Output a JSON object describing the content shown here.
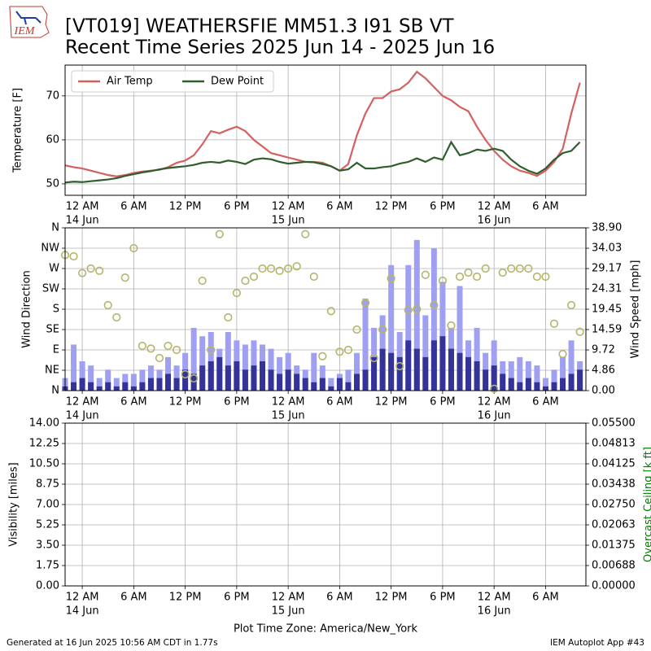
{
  "header": {
    "logo": "IEM",
    "title": [
      "[VT019] WEATHERSFIE MM51.3 I91 SB  VT",
      "Recent Time Series 2025 Jun 14 - 2025 Jun 16"
    ]
  },
  "footer": {
    "generated": "Generated at 16 Jun 2025 10:56 AM CDT in 1.77s",
    "app": "IEM Autoplot App #43"
  },
  "chart_data": [
    {
      "type": "line",
      "ylabel": "Temperature [F]",
      "xlim": [
        -2,
        58.7
      ],
      "ylim": [
        47.4,
        77
      ],
      "yticks": [
        50,
        60,
        70
      ],
      "xticks": [
        {
          "value": 0,
          "label": "12 AM",
          "sublabel": "14 Jun"
        },
        {
          "value": 6,
          "label": "6 AM"
        },
        {
          "value": 12,
          "label": "12 PM"
        },
        {
          "value": 18,
          "label": "6 PM"
        },
        {
          "value": 24,
          "label": "12 AM",
          "sublabel": "15 Jun"
        },
        {
          "value": 30,
          "label": "6 AM"
        },
        {
          "value": 36,
          "label": "12 PM"
        },
        {
          "value": 42,
          "label": "6 PM"
        },
        {
          "value": 48,
          "label": "12 AM",
          "sublabel": "16 Jun"
        },
        {
          "value": 54,
          "label": "6 AM"
        }
      ],
      "grid": true,
      "legend": "upper left",
      "x": [
        -2,
        -1,
        0,
        1,
        2,
        3,
        4,
        5,
        6,
        7,
        8,
        9,
        10,
        11,
        12,
        13,
        14,
        15,
        16,
        17,
        18,
        19,
        20,
        21,
        22,
        23,
        24,
        25,
        26,
        27,
        28,
        29,
        30,
        31,
        32,
        33,
        34,
        35,
        36,
        37,
        38,
        39,
        40,
        41,
        42,
        43,
        44,
        45,
        46,
        47,
        48,
        49,
        50,
        51,
        52,
        53,
        54,
        55,
        56,
        57,
        58
      ],
      "series": [
        {
          "name": "Air Temp",
          "color": "#d65f5f",
          "values": [
            54.2,
            53.8,
            53.5,
            53,
            52.5,
            52,
            51.7,
            52,
            52.5,
            52.8,
            53,
            53.2,
            53.8,
            54.8,
            55.3,
            56.5,
            59,
            62,
            61.5,
            62.3,
            63,
            62,
            60,
            58.5,
            57,
            56.5,
            56,
            55.5,
            55,
            55,
            54.8,
            54,
            53,
            54.5,
            61,
            66,
            69.5,
            69.5,
            71,
            71.5,
            73,
            75.5,
            74,
            72,
            70,
            69,
            67.5,
            66.5,
            63,
            60,
            57.5,
            55.5,
            54,
            53,
            52.5,
            51.8,
            53,
            55,
            58,
            66,
            73
          ]
        },
        {
          "name": "Dew Point",
          "color": "#2e5e2e",
          "values": [
            50.3,
            50.5,
            50.4,
            50.6,
            50.8,
            51,
            51.3,
            51.8,
            52.2,
            52.6,
            52.9,
            53.3,
            53.6,
            53.8,
            54,
            54.3,
            54.8,
            55,
            54.8,
            55.3,
            55,
            54.5,
            55.5,
            55.8,
            55.6,
            55,
            54.6,
            54.8,
            55,
            54.9,
            54.5,
            54,
            53,
            53.3,
            54.8,
            53.5,
            53.5,
            53.8,
            54,
            54.6,
            55,
            55.8,
            55,
            56,
            55.5,
            59.5,
            56.5,
            57,
            57.8,
            57.5,
            58,
            57.5,
            55.5,
            54,
            53,
            52.3,
            53.5,
            55.5,
            57,
            57.5,
            59.5
          ]
        }
      ]
    },
    {
      "type": "bar",
      "ylabel": "Wind Direction",
      "y2label": "Wind Speed [mph]",
      "xlim": [
        -2,
        58.7
      ],
      "ylim": [
        0,
        360
      ],
      "yticks": [
        {
          "value": 0,
          "label": "N"
        },
        {
          "value": 45,
          "label": "NE"
        },
        {
          "value": 90,
          "label": "E"
        },
        {
          "value": 135,
          "label": "SE"
        },
        {
          "value": 180,
          "label": "S"
        },
        {
          "value": 225,
          "label": "SW"
        },
        {
          "value": 270,
          "label": "W"
        },
        {
          "value": 315,
          "label": "NW"
        },
        {
          "value": 360,
          "label": "N"
        }
      ],
      "y2lim": [
        0,
        38.9
      ],
      "y2ticks": [
        {
          "value": 0,
          "label": "0.00"
        },
        4.86,
        9.72,
        14.59,
        19.45,
        24.31,
        29.17,
        34.03,
        {
          "value": 38.9,
          "label": "38.90"
        }
      ],
      "xticks": [
        {
          "value": 0,
          "label": "12 AM",
          "sublabel": "14 Jun"
        },
        {
          "value": 6,
          "label": "6 AM"
        },
        {
          "value": 12,
          "label": "12 PM"
        },
        {
          "value": 18,
          "label": "6 PM"
        },
        {
          "value": 24,
          "label": "12 AM",
          "sublabel": "15 Jun"
        },
        {
          "value": 30,
          "label": "6 AM"
        },
        {
          "value": 36,
          "label": "12 PM"
        },
        {
          "value": 42,
          "label": "6 PM"
        },
        {
          "value": 48,
          "label": "12 AM",
          "sublabel": "16 Jun"
        },
        {
          "value": 54,
          "label": "6 AM"
        }
      ],
      "grid": true,
      "x": [
        -2,
        -1,
        0,
        1,
        2,
        3,
        4,
        5,
        6,
        7,
        8,
        9,
        10,
        11,
        12,
        13,
        14,
        15,
        16,
        17,
        18,
        19,
        20,
        21,
        22,
        23,
        24,
        25,
        26,
        27,
        28,
        29,
        30,
        31,
        32,
        33,
        34,
        35,
        36,
        37,
        38,
        39,
        40,
        41,
        42,
        43,
        44,
        45,
        46,
        47,
        48,
        49,
        50,
        51,
        52,
        53,
        54,
        55,
        56,
        57,
        58
      ],
      "series": [
        {
          "type": "bar",
          "axis": "y2",
          "color": "#a0a0f2",
          "values": [
            3,
            11,
            7,
            6,
            3,
            5,
            3,
            4,
            4,
            5,
            6,
            5,
            8,
            6,
            9,
            15,
            13,
            14,
            10,
            14,
            12,
            11,
            12,
            11,
            10,
            8,
            9,
            6,
            5,
            9,
            6,
            3,
            4,
            5,
            9,
            22,
            15,
            18,
            30,
            14,
            30,
            36,
            18,
            34,
            26,
            15,
            25,
            12,
            15,
            9,
            12,
            7,
            7,
            8,
            7,
            6,
            3,
            5,
            8,
            12,
            7
          ]
        },
        {
          "type": "bar",
          "axis": "y2",
          "color": "#333399",
          "values": [
            1,
            2,
            3,
            2,
            1,
            2,
            1,
            2,
            1,
            2,
            3,
            3,
            4,
            3,
            5,
            4,
            6,
            7,
            8,
            6,
            7,
            5,
            6,
            7,
            5,
            4,
            5,
            4,
            3,
            2,
            3,
            1,
            3,
            2,
            4,
            5,
            8,
            10,
            9,
            8,
            12,
            10,
            8,
            12,
            13,
            10,
            9,
            8,
            7,
            5,
            6,
            4,
            3,
            2,
            3,
            2,
            1,
            2,
            3,
            4,
            5
          ]
        },
        {
          "type": "scatter",
          "color": "#b5b56a",
          "values": [
            300,
            297,
            260,
            270,
            265,
            189,
            162,
            250,
            315,
            99,
            93,
            72,
            99,
            90,
            36,
            27,
            243,
            90,
            346,
            162,
            216,
            243,
            252,
            270,
            270,
            265,
            270,
            275,
            346,
            252,
            76,
            176,
            86,
            90,
            135,
            194,
            72,
            135,
            248,
            54,
            178,
            180,
            256,
            189,
            243,
            144,
            252,
            261,
            252,
            270,
            4,
            261,
            270,
            270,
            270,
            252,
            252,
            148,
            81,
            189,
            130
          ]
        }
      ]
    },
    {
      "type": "line",
      "ylabel": "Visibility [miles]",
      "y2label": "Overcast Ceiling [k ft]",
      "y2label_color": "#008000",
      "xlabel": "Plot Time Zone: America/New_York",
      "xlim": [
        -2,
        58.7
      ],
      "ylim": [
        0,
        14
      ],
      "yticks": [
        {
          "value": 0,
          "label": "0.00"
        },
        1.75,
        {
          "value": 3.5,
          "label": "3.50"
        },
        5.25,
        {
          "value": 7,
          "label": "7.00"
        },
        8.75,
        {
          "value": 10.5,
          "label": "10.50"
        },
        12.25,
        {
          "value": 14,
          "label": "14.00"
        }
      ],
      "y2lim": [
        0,
        0.055
      ],
      "y2ticks": [
        {
          "value": 0,
          "label": "0.00000"
        },
        0.00688,
        0.01375,
        0.02063,
        {
          "value": 0.0275,
          "label": "0.02750"
        },
        0.03438,
        0.04125,
        0.04813,
        {
          "value": 0.055,
          "label": "0.05500"
        }
      ],
      "xticks": [
        {
          "value": 0,
          "label": "12 AM",
          "sublabel": "14 Jun"
        },
        {
          "value": 6,
          "label": "6 AM"
        },
        {
          "value": 12,
          "label": "12 PM"
        },
        {
          "value": 18,
          "label": "6 PM"
        },
        {
          "value": 24,
          "label": "12 AM",
          "sublabel": "15 Jun"
        },
        {
          "value": 30,
          "label": "6 AM"
        },
        {
          "value": 36,
          "label": "12 PM"
        },
        {
          "value": 42,
          "label": "6 PM"
        },
        {
          "value": 48,
          "label": "12 AM",
          "sublabel": "16 Jun"
        },
        {
          "value": 54,
          "label": "6 AM"
        }
      ],
      "grid": true
    }
  ]
}
